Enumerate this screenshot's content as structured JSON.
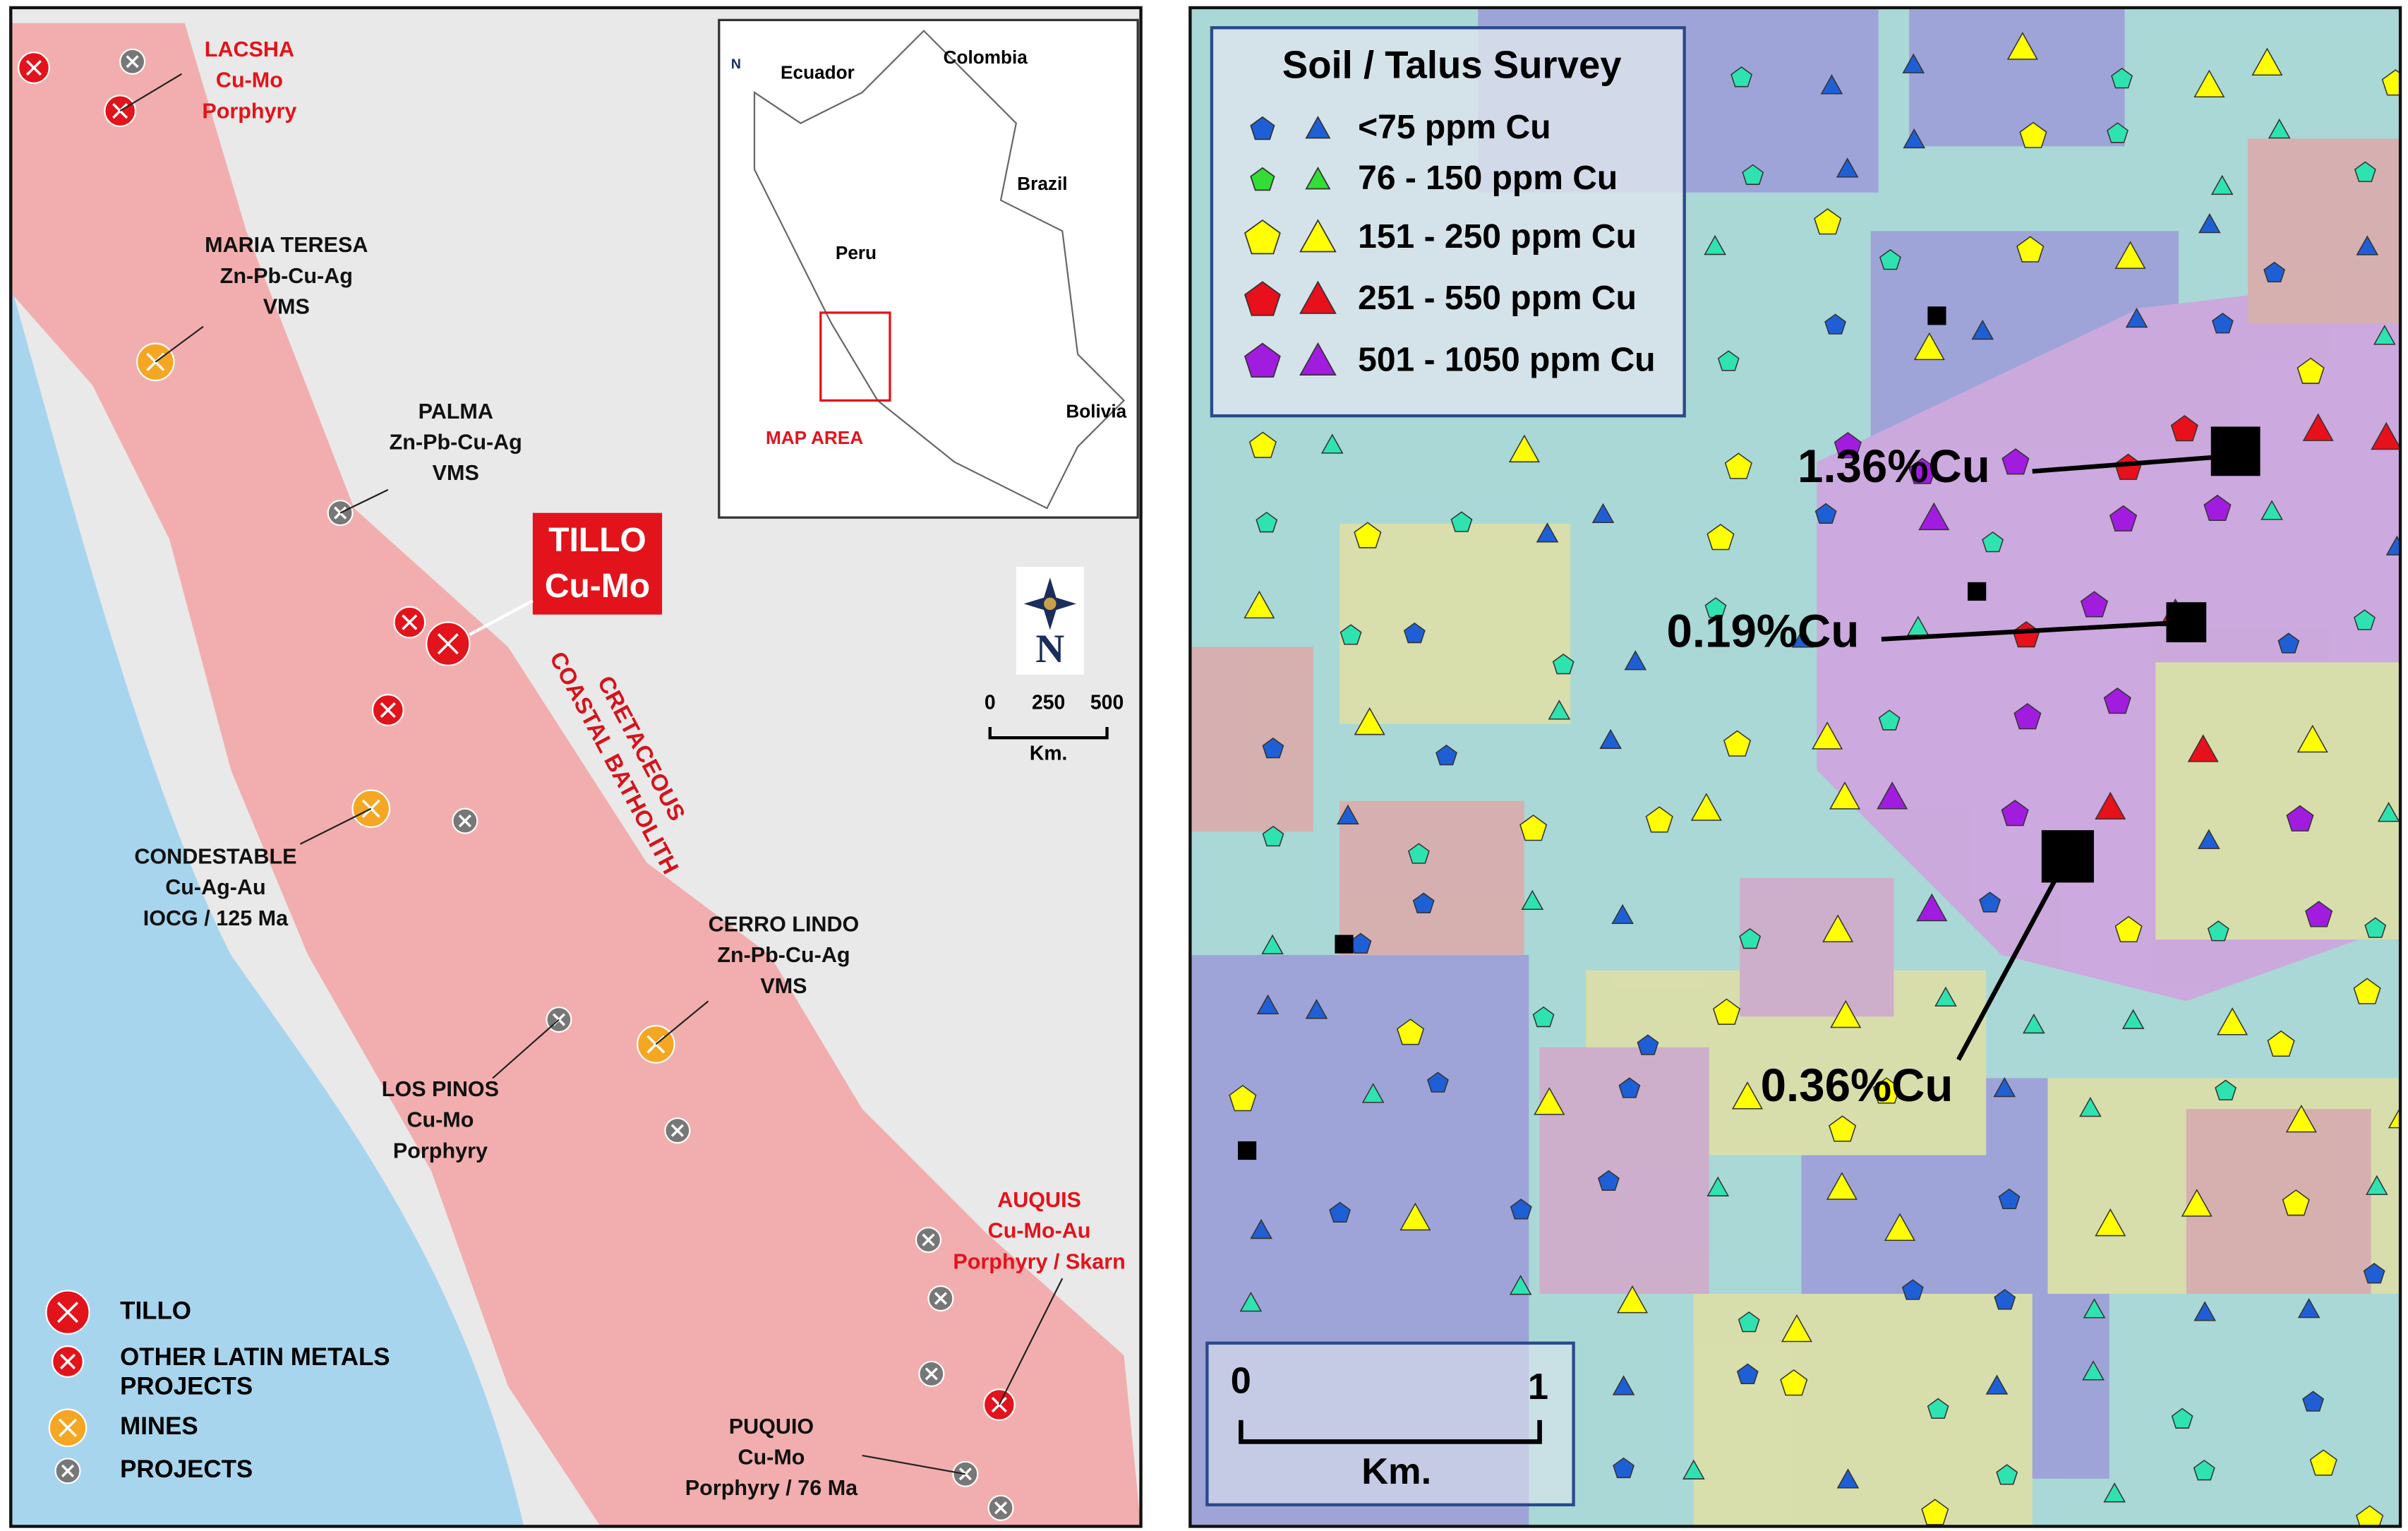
{
  "left_map": {
    "sites": [
      {
        "lines": [
          "LACSHA",
          "Cu-Mo",
          "Porphyry"
        ]
      },
      {
        "lines": [
          "MARIA TERESA",
          "Zn-Pb-Cu-Ag",
          "VMS"
        ]
      },
      {
        "lines": [
          "PALMA",
          "Zn-Pb-Cu-Ag",
          "VMS"
        ]
      },
      {
        "lines": [
          "CONDESTABLE",
          "Cu-Ag-Au",
          "IOCG / 125 Ma"
        ]
      },
      {
        "lines": [
          "CERRO LINDO",
          "Zn-Pb-Cu-Ag",
          "VMS"
        ]
      },
      {
        "lines": [
          "LOS PINOS",
          "Cu-Mo",
          "Porphyry"
        ]
      },
      {
        "lines": [
          "AUQUIS",
          "Cu-Mo-Au",
          "Porphyry / Skarn"
        ]
      },
      {
        "lines": [
          "PUQUIO",
          "Cu-Mo",
          "Porphyry / 76 Ma"
        ]
      }
    ],
    "tillo": [
      "TILLO",
      "Cu-Mo"
    ],
    "batholith": [
      "CRETACEOUS",
      "COASTAL BATHOLITH"
    ],
    "inset": {
      "labels": [
        "Ecuador",
        "Colombia",
        "Brazil",
        "Peru",
        "Bolivia"
      ],
      "map_area": "MAP AREA",
      "north": "N"
    },
    "compass_north": "N",
    "scale": {
      "ticks": [
        "0",
        "250",
        "500"
      ],
      "unit": "Km."
    },
    "legend": [
      "TILLO",
      "OTHER LATIN METALS",
      "PROJECTS",
      "MINES",
      "PROJECTS"
    ]
  },
  "right_map": {
    "title": "Soil / Talus Survey",
    "legend": [
      "<75 ppm Cu",
      "76 - 150 ppm Cu",
      "151 - 250 ppm Cu",
      "251 - 550 ppm Cu",
      "501 - 1050 ppm Cu"
    ],
    "annotations": [
      "1.36%Cu",
      "0.19%Cu",
      "0.36%Cu"
    ],
    "scale": {
      "ticks": [
        "0",
        "1"
      ],
      "unit": "Km."
    }
  }
}
